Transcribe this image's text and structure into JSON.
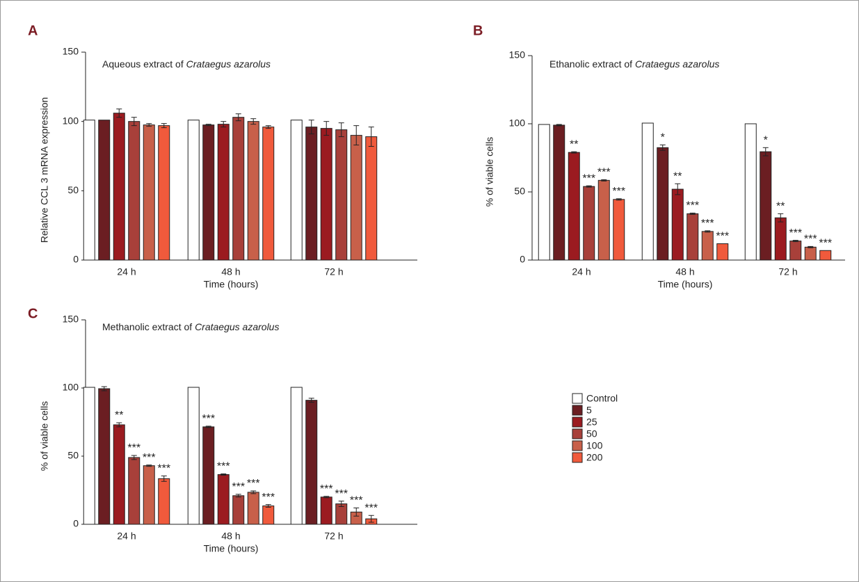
{
  "legend": {
    "labels": [
      "Control",
      "5",
      "25",
      "50",
      "100",
      "200"
    ],
    "colors": [
      "#ffffff",
      "#6b1e22",
      "#9b1b20",
      "#a8403a",
      "#c8604a",
      "#f05a3c"
    ]
  },
  "chart_data": [
    {
      "type": "bar",
      "panel": "A",
      "title": "Aqueous extract of",
      "title_italic": "Crataegus azarolus",
      "ylabel": "Relative CCL 3 mRNA expression",
      "xlabel": "Time (hours)",
      "categories": [
        "24 h",
        "48 h",
        "72 h"
      ],
      "ylim": [
        0,
        150
      ],
      "yticks": [
        0,
        50,
        100,
        150
      ],
      "series": [
        {
          "values": [
            101,
            101,
            101
          ],
          "errors": [
            0,
            0,
            0
          ],
          "annotations": [
            null,
            null,
            null
          ]
        },
        {
          "values": [
            101,
            97.5,
            96
          ],
          "errors": [
            0,
            0.5,
            5
          ],
          "annotations": [
            null,
            null,
            null
          ]
        },
        {
          "values": [
            106,
            98,
            95
          ],
          "errors": [
            3,
            2,
            5
          ],
          "annotations": [
            null,
            null,
            null
          ]
        },
        {
          "values": [
            100,
            103,
            94
          ],
          "errors": [
            3,
            2.5,
            5
          ],
          "annotations": [
            null,
            null,
            null
          ]
        },
        {
          "values": [
            97.5,
            100,
            90
          ],
          "errors": [
            1,
            2,
            7
          ],
          "annotations": [
            null,
            null,
            null
          ]
        },
        {
          "values": [
            97,
            96,
            89
          ],
          "errors": [
            1.5,
            1,
            7
          ],
          "annotations": [
            null,
            null,
            null
          ]
        }
      ]
    },
    {
      "type": "bar",
      "panel": "B",
      "title": "Ethanolic extract of",
      "title_italic": "Crataegus azarolus",
      "ylabel": "% of viable cells",
      "xlabel": "Time (hours)",
      "categories": [
        "24 h",
        "48 h",
        "72 h"
      ],
      "ylim": [
        0,
        150
      ],
      "yticks": [
        0,
        50,
        100,
        150
      ],
      "series": [
        {
          "values": [
            99.5,
            100.5,
            100
          ],
          "errors": [
            0,
            0,
            0
          ],
          "annotations": [
            null,
            null,
            null
          ]
        },
        {
          "values": [
            99,
            82.5,
            79.5
          ],
          "errors": [
            0.5,
            2,
            3
          ],
          "annotations": [
            null,
            "*",
            "*"
          ]
        },
        {
          "values": [
            79,
            52,
            31
          ],
          "errors": [
            0.5,
            4,
            3
          ],
          "annotations": [
            "**",
            "**",
            "**"
          ]
        },
        {
          "values": [
            54,
            34,
            14
          ],
          "errors": [
            0.5,
            0.5,
            0.5
          ],
          "annotations": [
            "***",
            "***",
            "***"
          ]
        },
        {
          "values": [
            58.5,
            21,
            9.5
          ],
          "errors": [
            0.5,
            0.5,
            0.5
          ],
          "annotations": [
            "***",
            "***",
            "***"
          ]
        },
        {
          "values": [
            44.5,
            12,
            7
          ],
          "errors": [
            0.5,
            0,
            0
          ],
          "annotations": [
            "***",
            "***",
            "***"
          ]
        }
      ]
    },
    {
      "type": "bar",
      "panel": "C",
      "title": "Methanolic extract of",
      "title_italic": "Crataegus azarolus",
      "ylabel": "% of viable cells",
      "xlabel": "Time (hours)",
      "categories": [
        "24 h",
        "48 h",
        "72 h"
      ],
      "ylim": [
        0,
        150
      ],
      "yticks": [
        0,
        50,
        100,
        150
      ],
      "series": [
        {
          "values": [
            100.5,
            100.5,
            100.5
          ],
          "errors": [
            0,
            0,
            0
          ],
          "annotations": [
            null,
            null,
            null
          ]
        },
        {
          "values": [
            99.5,
            71.5,
            91
          ],
          "errors": [
            1.5,
            0.5,
            1.5
          ],
          "annotations": [
            null,
            "***",
            null
          ]
        },
        {
          "values": [
            73,
            36.5,
            20
          ],
          "errors": [
            1.5,
            0.5,
            0.5
          ],
          "annotations": [
            "**",
            "***",
            "***"
          ]
        },
        {
          "values": [
            49,
            21,
            15
          ],
          "errors": [
            1.5,
            1,
            2
          ],
          "annotations": [
            "***",
            "***",
            "***"
          ]
        },
        {
          "values": [
            43,
            23.5,
            9
          ],
          "errors": [
            0.5,
            1,
            3
          ],
          "annotations": [
            "***",
            "***",
            "***"
          ]
        },
        {
          "values": [
            33.5,
            13.5,
            4
          ],
          "errors": [
            2,
            1,
            2.5
          ],
          "annotations": [
            "***",
            "***",
            "***"
          ]
        }
      ]
    }
  ]
}
